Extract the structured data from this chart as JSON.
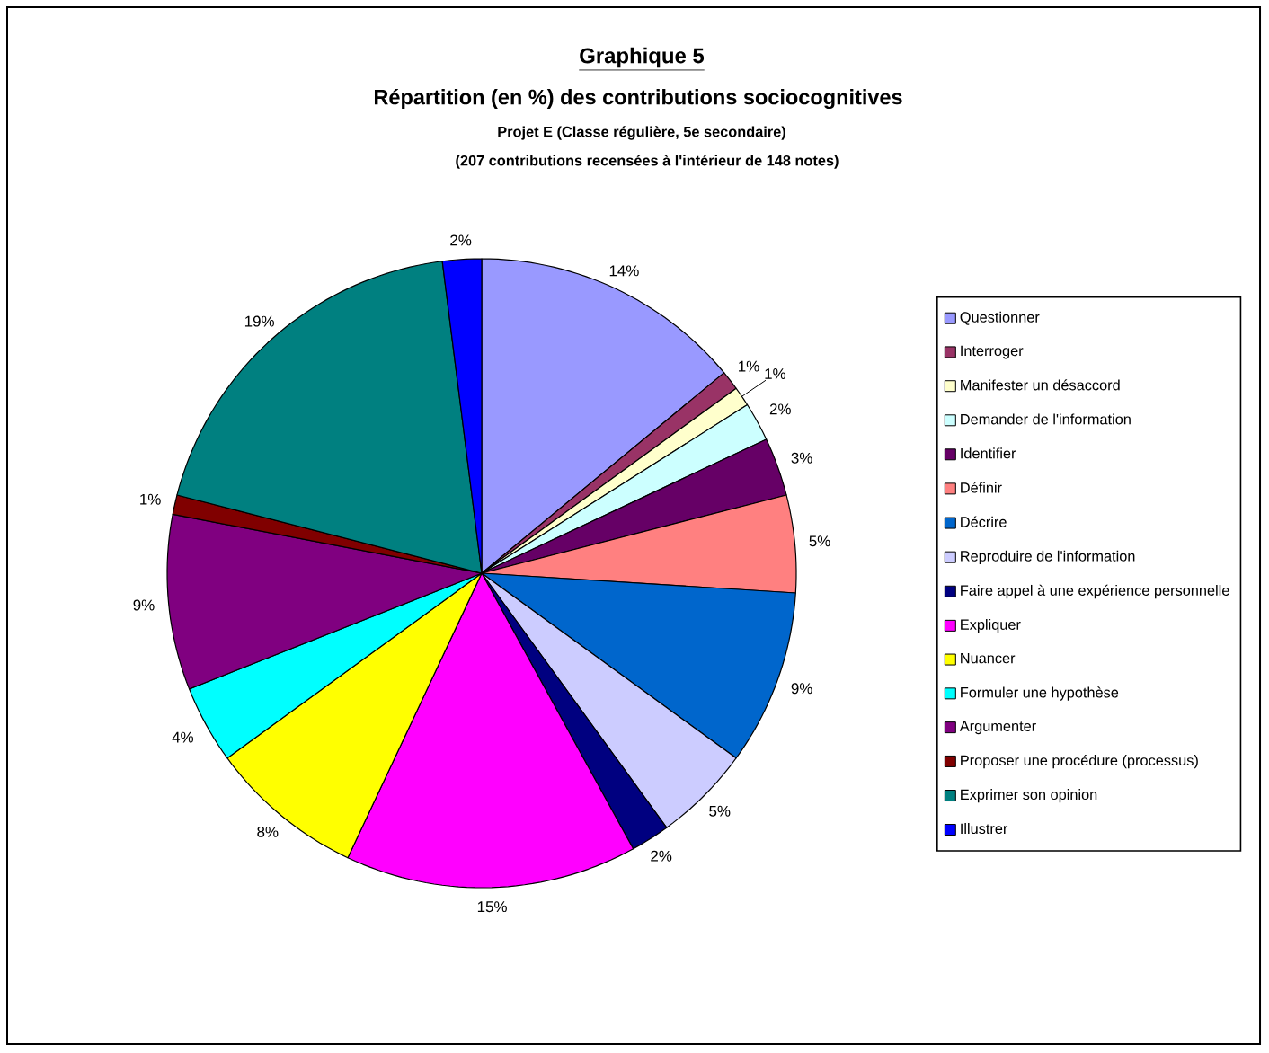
{
  "chart_data": {
    "type": "pie",
    "title": "Graphique 5",
    "subtitle": "Répartition (en %) des contributions sociocognitives",
    "annotations": [
      "Projet E (Classe régulière, 5e secondaire)",
      "(207 contributions recensées à l'intérieur de 148 notes)"
    ],
    "categories": [
      "Questionner",
      "Interroger",
      "Manifester un désaccord",
      "Demander de l'information",
      "Identifier",
      "Définir",
      "Décrire",
      "Reproduire de l'information",
      "Faire appel à une expérience personnelle",
      "Expliquer",
      "Nuancer",
      "Formuler une hypothèse",
      "Argumenter",
      "Proposer une procédure (processus)",
      "Exprimer son opinion",
      "Illustrer"
    ],
    "values": [
      14,
      1,
      1,
      2,
      3,
      5,
      9,
      5,
      2,
      15,
      8,
      4,
      9,
      1,
      19,
      2
    ],
    "colors": [
      "#9999ff",
      "#993366",
      "#ffffcc",
      "#ccffff",
      "#660066",
      "#ff8080",
      "#0066cc",
      "#ccccff",
      "#000080",
      "#ff00ff",
      "#ffff00",
      "#00ffff",
      "#800080",
      "#800000",
      "#008080",
      "#0000ff"
    ],
    "value_labels": [
      "14%",
      "1%",
      "1%",
      "2%",
      "3%",
      "5%",
      "9%",
      "5%",
      "2%",
      "15%",
      "8%",
      "4%",
      "9%",
      "1%",
      "19%",
      "2%"
    ],
    "legend": "right"
  }
}
